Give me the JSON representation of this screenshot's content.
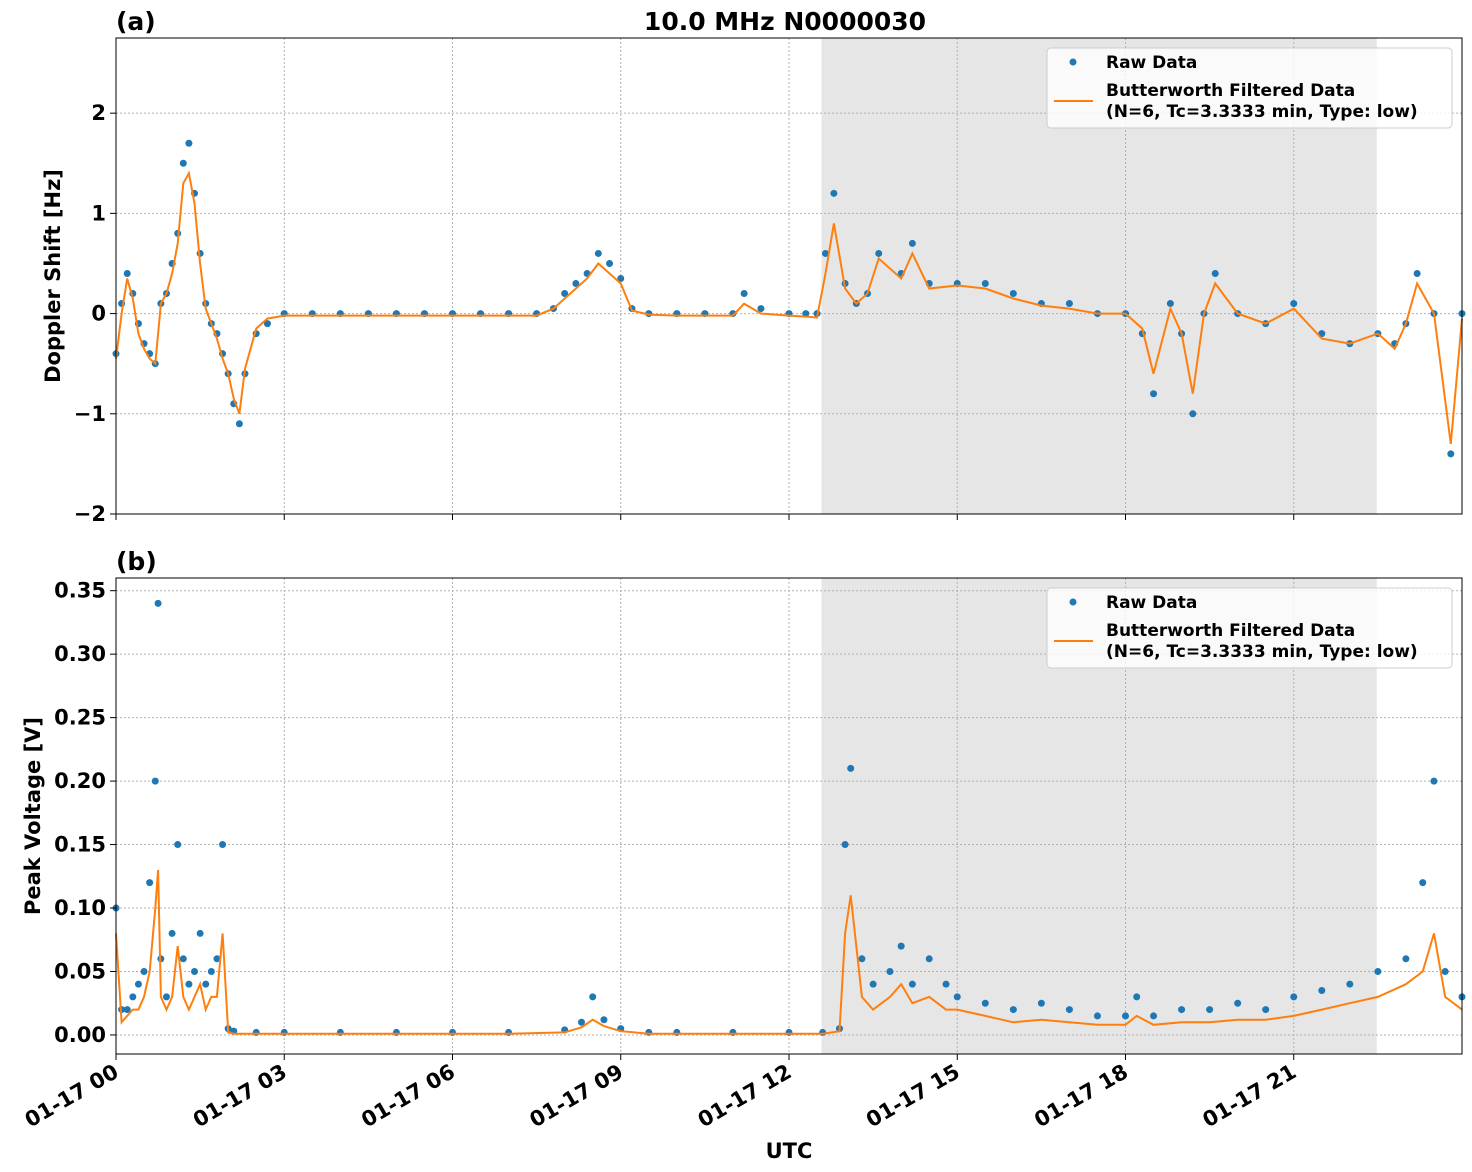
{
  "figure": {
    "title": "10.0 MHz N0000030",
    "xlabel": "UTC"
  },
  "colors": {
    "raw": "#1f77b4",
    "filtered": "#ff7f0e",
    "shade": "#e6e6e6",
    "grid": "#b0b0b0"
  },
  "legend": {
    "raw_label": "Raw Data",
    "filtered_line1": "Butterworth Filtered Data",
    "filtered_line2": "(N=6, Tc=3.3333 min, Type: low)",
    "placement": "top-right"
  },
  "chart_data": [
    {
      "type": "scatter",
      "panel_label": "(a)",
      "ylabel": "Doppler Shift [Hz]",
      "xlim_hours": [
        0,
        24
      ],
      "ylim": [
        -2,
        2.75
      ],
      "yticks": [
        -2,
        -1,
        0,
        1,
        2
      ],
      "ytick_labels": [
        "−2",
        "−1",
        "0",
        "1",
        "2"
      ],
      "xticks_hours": [
        0,
        3,
        6,
        9,
        12,
        15,
        18,
        21
      ],
      "xtick_labels": [
        "01-17 00",
        "01-17 03",
        "01-17 06",
        "01-17 09",
        "01-17 12",
        "01-17 15",
        "01-17 18",
        "01-17 21"
      ],
      "shaded_span_hours": [
        12.58,
        22.48
      ],
      "grid": true,
      "series": [
        {
          "name": "Raw Data",
          "x": [
            0,
            0.1,
            0.2,
            0.3,
            0.4,
            0.5,
            0.6,
            0.7,
            0.8,
            0.9,
            1.0,
            1.1,
            1.2,
            1.3,
            1.4,
            1.5,
            1.6,
            1.7,
            1.8,
            1.9,
            2.0,
            2.1,
            2.2,
            2.3,
            2.5,
            2.7,
            3.0,
            3.5,
            4.0,
            4.5,
            5.0,
            5.5,
            6.0,
            6.5,
            7.0,
            7.5,
            7.8,
            8.0,
            8.2,
            8.4,
            8.6,
            8.8,
            9.0,
            9.2,
            9.5,
            10.0,
            10.5,
            11.0,
            11.2,
            11.5,
            12.0,
            12.3,
            12.5,
            12.65,
            12.8,
            13.0,
            13.2,
            13.4,
            13.6,
            14.0,
            14.2,
            14.5,
            15.0,
            15.5,
            16.0,
            16.5,
            17.0,
            17.5,
            18.0,
            18.3,
            18.5,
            18.8,
            19.0,
            19.2,
            19.4,
            19.6,
            20.0,
            20.5,
            21.0,
            21.5,
            22.0,
            22.5,
            22.8,
            23.0,
            23.2,
            23.5,
            23.8,
            24.0
          ],
          "y": [
            -0.4,
            0.1,
            0.4,
            0.2,
            -0.1,
            -0.3,
            -0.4,
            -0.5,
            0.1,
            0.2,
            0.5,
            0.8,
            1.5,
            1.7,
            1.2,
            0.6,
            0.1,
            -0.1,
            -0.2,
            -0.4,
            -0.6,
            -0.9,
            -1.1,
            -0.6,
            -0.2,
            -0.1,
            0.0,
            0.0,
            0.0,
            0.0,
            0.0,
            0.0,
            0.0,
            0.0,
            0.0,
            0.0,
            0.05,
            0.2,
            0.3,
            0.4,
            0.6,
            0.5,
            0.35,
            0.05,
            0.0,
            0.0,
            0.0,
            0.0,
            0.2,
            0.05,
            0.0,
            0.0,
            0.0,
            0.6,
            1.2,
            0.3,
            0.1,
            0.2,
            0.6,
            0.4,
            0.7,
            0.3,
            0.3,
            0.3,
            0.2,
            0.1,
            0.1,
            0.0,
            0.0,
            -0.2,
            -0.8,
            0.1,
            -0.2,
            -1.0,
            0.0,
            0.4,
            0.0,
            -0.1,
            0.1,
            -0.2,
            -0.3,
            -0.2,
            -0.3,
            -0.1,
            0.4,
            0.0,
            -1.4,
            0.0
          ]
        },
        {
          "name": "Butterworth Filtered Data (N=6, Tc=3.3333 min, Type: low)",
          "x": [
            0,
            0.1,
            0.2,
            0.3,
            0.4,
            0.5,
            0.6,
            0.7,
            0.8,
            0.9,
            1.0,
            1.1,
            1.2,
            1.3,
            1.4,
            1.5,
            1.6,
            1.7,
            1.8,
            1.9,
            2.0,
            2.1,
            2.2,
            2.3,
            2.5,
            2.7,
            3.0,
            3.5,
            4.0,
            4.5,
            5.0,
            5.5,
            6.0,
            6.5,
            7.0,
            7.5,
            7.8,
            8.0,
            8.2,
            8.4,
            8.6,
            8.8,
            9.0,
            9.2,
            9.5,
            10.0,
            10.5,
            11.0,
            11.2,
            11.5,
            12.0,
            12.3,
            12.5,
            12.65,
            12.8,
            13.0,
            13.2,
            13.4,
            13.6,
            14.0,
            14.2,
            14.5,
            15.0,
            15.5,
            16.0,
            16.5,
            17.0,
            17.5,
            18.0,
            18.3,
            18.5,
            18.8,
            19.0,
            19.2,
            19.4,
            19.6,
            20.0,
            20.5,
            21.0,
            21.5,
            22.0,
            22.5,
            22.8,
            23.0,
            23.2,
            23.5,
            23.8,
            24.0
          ],
          "y": [
            -0.45,
            0.0,
            0.35,
            0.15,
            -0.2,
            -0.35,
            -0.45,
            -0.5,
            0.1,
            0.2,
            0.4,
            0.7,
            1.3,
            1.4,
            1.1,
            0.5,
            0.05,
            -0.1,
            -0.25,
            -0.45,
            -0.6,
            -0.85,
            -1.0,
            -0.55,
            -0.15,
            -0.05,
            -0.02,
            -0.02,
            -0.02,
            -0.02,
            -0.02,
            -0.02,
            -0.02,
            -0.02,
            -0.02,
            -0.02,
            0.05,
            0.15,
            0.25,
            0.35,
            0.5,
            0.4,
            0.3,
            0.03,
            -0.01,
            -0.02,
            -0.02,
            -0.02,
            0.1,
            0.0,
            -0.02,
            -0.03,
            -0.04,
            0.4,
            0.9,
            0.25,
            0.1,
            0.2,
            0.55,
            0.35,
            0.6,
            0.25,
            0.28,
            0.25,
            0.15,
            0.08,
            0.05,
            0.0,
            0.0,
            -0.15,
            -0.6,
            0.05,
            -0.2,
            -0.8,
            0.0,
            0.3,
            0.0,
            -0.1,
            0.05,
            -0.25,
            -0.3,
            -0.2,
            -0.35,
            -0.1,
            0.3,
            0.0,
            -1.3,
            -0.05
          ]
        }
      ]
    },
    {
      "type": "scatter",
      "panel_label": "(b)",
      "ylabel": "Peak Voltage [V]",
      "xlim_hours": [
        0,
        24
      ],
      "ylim": [
        -0.015,
        0.36
      ],
      "yticks": [
        0.0,
        0.05,
        0.1,
        0.15,
        0.2,
        0.25,
        0.3,
        0.35
      ],
      "ytick_labels": [
        "0.00",
        "0.05",
        "0.10",
        "0.15",
        "0.20",
        "0.25",
        "0.30",
        "0.35"
      ],
      "xticks_hours": [
        0,
        3,
        6,
        9,
        12,
        15,
        18,
        21
      ],
      "xtick_labels": [
        "01-17 00",
        "01-17 03",
        "01-17 06",
        "01-17 09",
        "01-17 12",
        "01-17 15",
        "01-17 18",
        "01-17 21"
      ],
      "shaded_span_hours": [
        12.58,
        22.48
      ],
      "grid": true,
      "series": [
        {
          "name": "Raw Data",
          "x": [
            0,
            0.1,
            0.2,
            0.3,
            0.4,
            0.5,
            0.6,
            0.7,
            0.75,
            0.8,
            0.9,
            1.0,
            1.1,
            1.2,
            1.3,
            1.4,
            1.5,
            1.6,
            1.7,
            1.8,
            1.9,
            2.0,
            2.1,
            2.5,
            3.0,
            4.0,
            5.0,
            6.0,
            7.0,
            8.0,
            8.3,
            8.5,
            8.7,
            9.0,
            9.5,
            10.0,
            11.0,
            12.0,
            12.6,
            12.9,
            13.0,
            13.1,
            13.3,
            13.5,
            13.8,
            14.0,
            14.2,
            14.5,
            14.8,
            15.0,
            15.5,
            16.0,
            16.5,
            17.0,
            17.5,
            18.0,
            18.2,
            18.5,
            19.0,
            19.5,
            20.0,
            20.5,
            21.0,
            21.5,
            22.0,
            22.5,
            23.0,
            23.3,
            23.5,
            23.7,
            24.0
          ],
          "y": [
            0.1,
            0.02,
            0.02,
            0.03,
            0.04,
            0.05,
            0.12,
            0.2,
            0.34,
            0.06,
            0.03,
            0.08,
            0.15,
            0.06,
            0.04,
            0.05,
            0.08,
            0.04,
            0.05,
            0.06,
            0.15,
            0.005,
            0.003,
            0.002,
            0.002,
            0.002,
            0.002,
            0.002,
            0.002,
            0.004,
            0.01,
            0.03,
            0.012,
            0.005,
            0.002,
            0.002,
            0.002,
            0.002,
            0.002,
            0.005,
            0.15,
            0.21,
            0.06,
            0.04,
            0.05,
            0.07,
            0.04,
            0.06,
            0.04,
            0.03,
            0.025,
            0.02,
            0.025,
            0.02,
            0.015,
            0.015,
            0.03,
            0.015,
            0.02,
            0.02,
            0.025,
            0.02,
            0.03,
            0.035,
            0.04,
            0.05,
            0.06,
            0.12,
            0.2,
            0.05,
            0.03
          ]
        },
        {
          "name": "Butterworth Filtered Data (N=6, Tc=3.3333 min, Type: low)",
          "x": [
            0,
            0.1,
            0.2,
            0.3,
            0.4,
            0.5,
            0.6,
            0.7,
            0.75,
            0.8,
            0.9,
            1.0,
            1.1,
            1.2,
            1.3,
            1.4,
            1.5,
            1.6,
            1.7,
            1.8,
            1.9,
            2.0,
            2.1,
            2.5,
            3.0,
            4.0,
            5.0,
            6.0,
            7.0,
            8.0,
            8.3,
            8.5,
            8.7,
            9.0,
            9.5,
            10.0,
            11.0,
            12.0,
            12.6,
            12.9,
            13.0,
            13.1,
            13.3,
            13.5,
            13.8,
            14.0,
            14.2,
            14.5,
            14.8,
            15.0,
            15.5,
            16.0,
            16.5,
            17.0,
            17.5,
            18.0,
            18.2,
            18.5,
            19.0,
            19.5,
            20.0,
            20.5,
            21.0,
            21.5,
            22.0,
            22.5,
            23.0,
            23.3,
            23.5,
            23.7,
            24.0
          ],
          "y": [
            0.08,
            0.01,
            0.015,
            0.02,
            0.02,
            0.03,
            0.05,
            0.1,
            0.13,
            0.03,
            0.02,
            0.03,
            0.07,
            0.03,
            0.02,
            0.03,
            0.04,
            0.02,
            0.03,
            0.03,
            0.08,
            0.002,
            0.001,
            0.001,
            0.001,
            0.001,
            0.001,
            0.001,
            0.001,
            0.002,
            0.006,
            0.012,
            0.007,
            0.003,
            0.001,
            0.001,
            0.001,
            0.001,
            0.001,
            0.003,
            0.08,
            0.11,
            0.03,
            0.02,
            0.03,
            0.04,
            0.025,
            0.03,
            0.02,
            0.02,
            0.015,
            0.01,
            0.012,
            0.01,
            0.008,
            0.008,
            0.015,
            0.008,
            0.01,
            0.01,
            0.012,
            0.012,
            0.015,
            0.02,
            0.025,
            0.03,
            0.04,
            0.05,
            0.08,
            0.03,
            0.02
          ]
        }
      ]
    }
  ]
}
